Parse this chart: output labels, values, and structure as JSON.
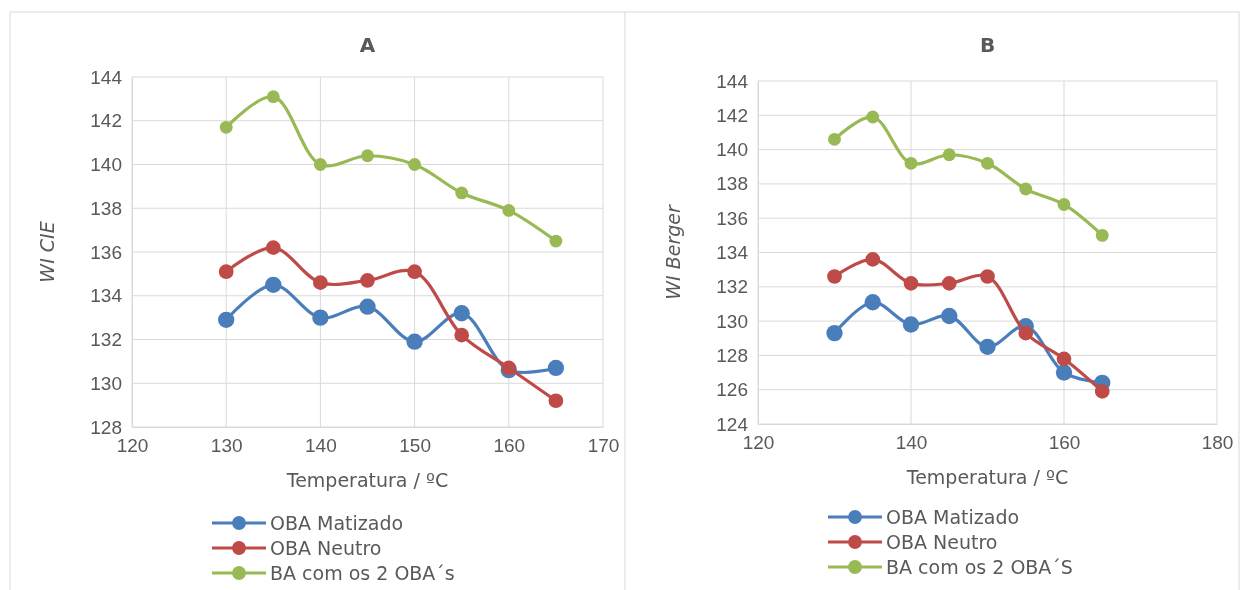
{
  "chart_data": [
    {
      "type": "line",
      "title": "A",
      "xlabel": "Temperatura / ºC",
      "ylabel": "WI CIE",
      "x": [
        130,
        135,
        140,
        145,
        150,
        155,
        160,
        165
      ],
      "xlim": [
        120,
        170
      ],
      "xticks": [
        120,
        130,
        140,
        150,
        160,
        170
      ],
      "ylim": [
        128,
        144
      ],
      "yticks": [
        128,
        130,
        132,
        134,
        136,
        138,
        140,
        142,
        144
      ],
      "grid": true,
      "legend": "bottom",
      "marker": "circle",
      "line_style": "solid",
      "series": [
        {
          "name": "OBA Matizado",
          "color": "#4a7ebb",
          "values": [
            132.9,
            134.5,
            133.0,
            133.5,
            131.9,
            133.2,
            130.6,
            130.7
          ]
        },
        {
          "name": "OBA Neutro",
          "color": "#be4b48",
          "values": [
            135.1,
            136.2,
            134.6,
            134.7,
            135.1,
            132.2,
            130.7,
            129.2
          ]
        },
        {
          "name": "BA com os 2 OBA´s",
          "color": "#98b954",
          "values": [
            141.7,
            143.1,
            140.0,
            140.4,
            140.0,
            138.7,
            137.9,
            136.5
          ]
        }
      ]
    },
    {
      "type": "line",
      "title": "B",
      "xlabel": "Temperatura / ºC",
      "ylabel": "WI Berger",
      "x": [
        130,
        135,
        140,
        145,
        150,
        155,
        160,
        165
      ],
      "xlim": [
        120,
        180
      ],
      "xticks": [
        120,
        140,
        160,
        180
      ],
      "ylim": [
        124,
        144
      ],
      "yticks": [
        124,
        126,
        128,
        130,
        132,
        134,
        136,
        138,
        140,
        142,
        144
      ],
      "grid": true,
      "legend": "bottom",
      "marker": "circle",
      "line_style": "solid",
      "series": [
        {
          "name": "OBA Matizado",
          "color": "#4a7ebb",
          "values": [
            129.3,
            131.1,
            129.8,
            130.3,
            128.5,
            129.7,
            127.0,
            126.4
          ]
        },
        {
          "name": "OBA Neutro",
          "color": "#be4b48",
          "values": [
            132.6,
            133.6,
            132.2,
            132.2,
            132.6,
            129.3,
            127.8,
            125.9
          ]
        },
        {
          "name": "BA com os 2 OBA´S",
          "color": "#98b954",
          "values": [
            140.6,
            141.9,
            139.2,
            139.7,
            139.2,
            137.7,
            136.8,
            135.0
          ]
        }
      ]
    }
  ]
}
